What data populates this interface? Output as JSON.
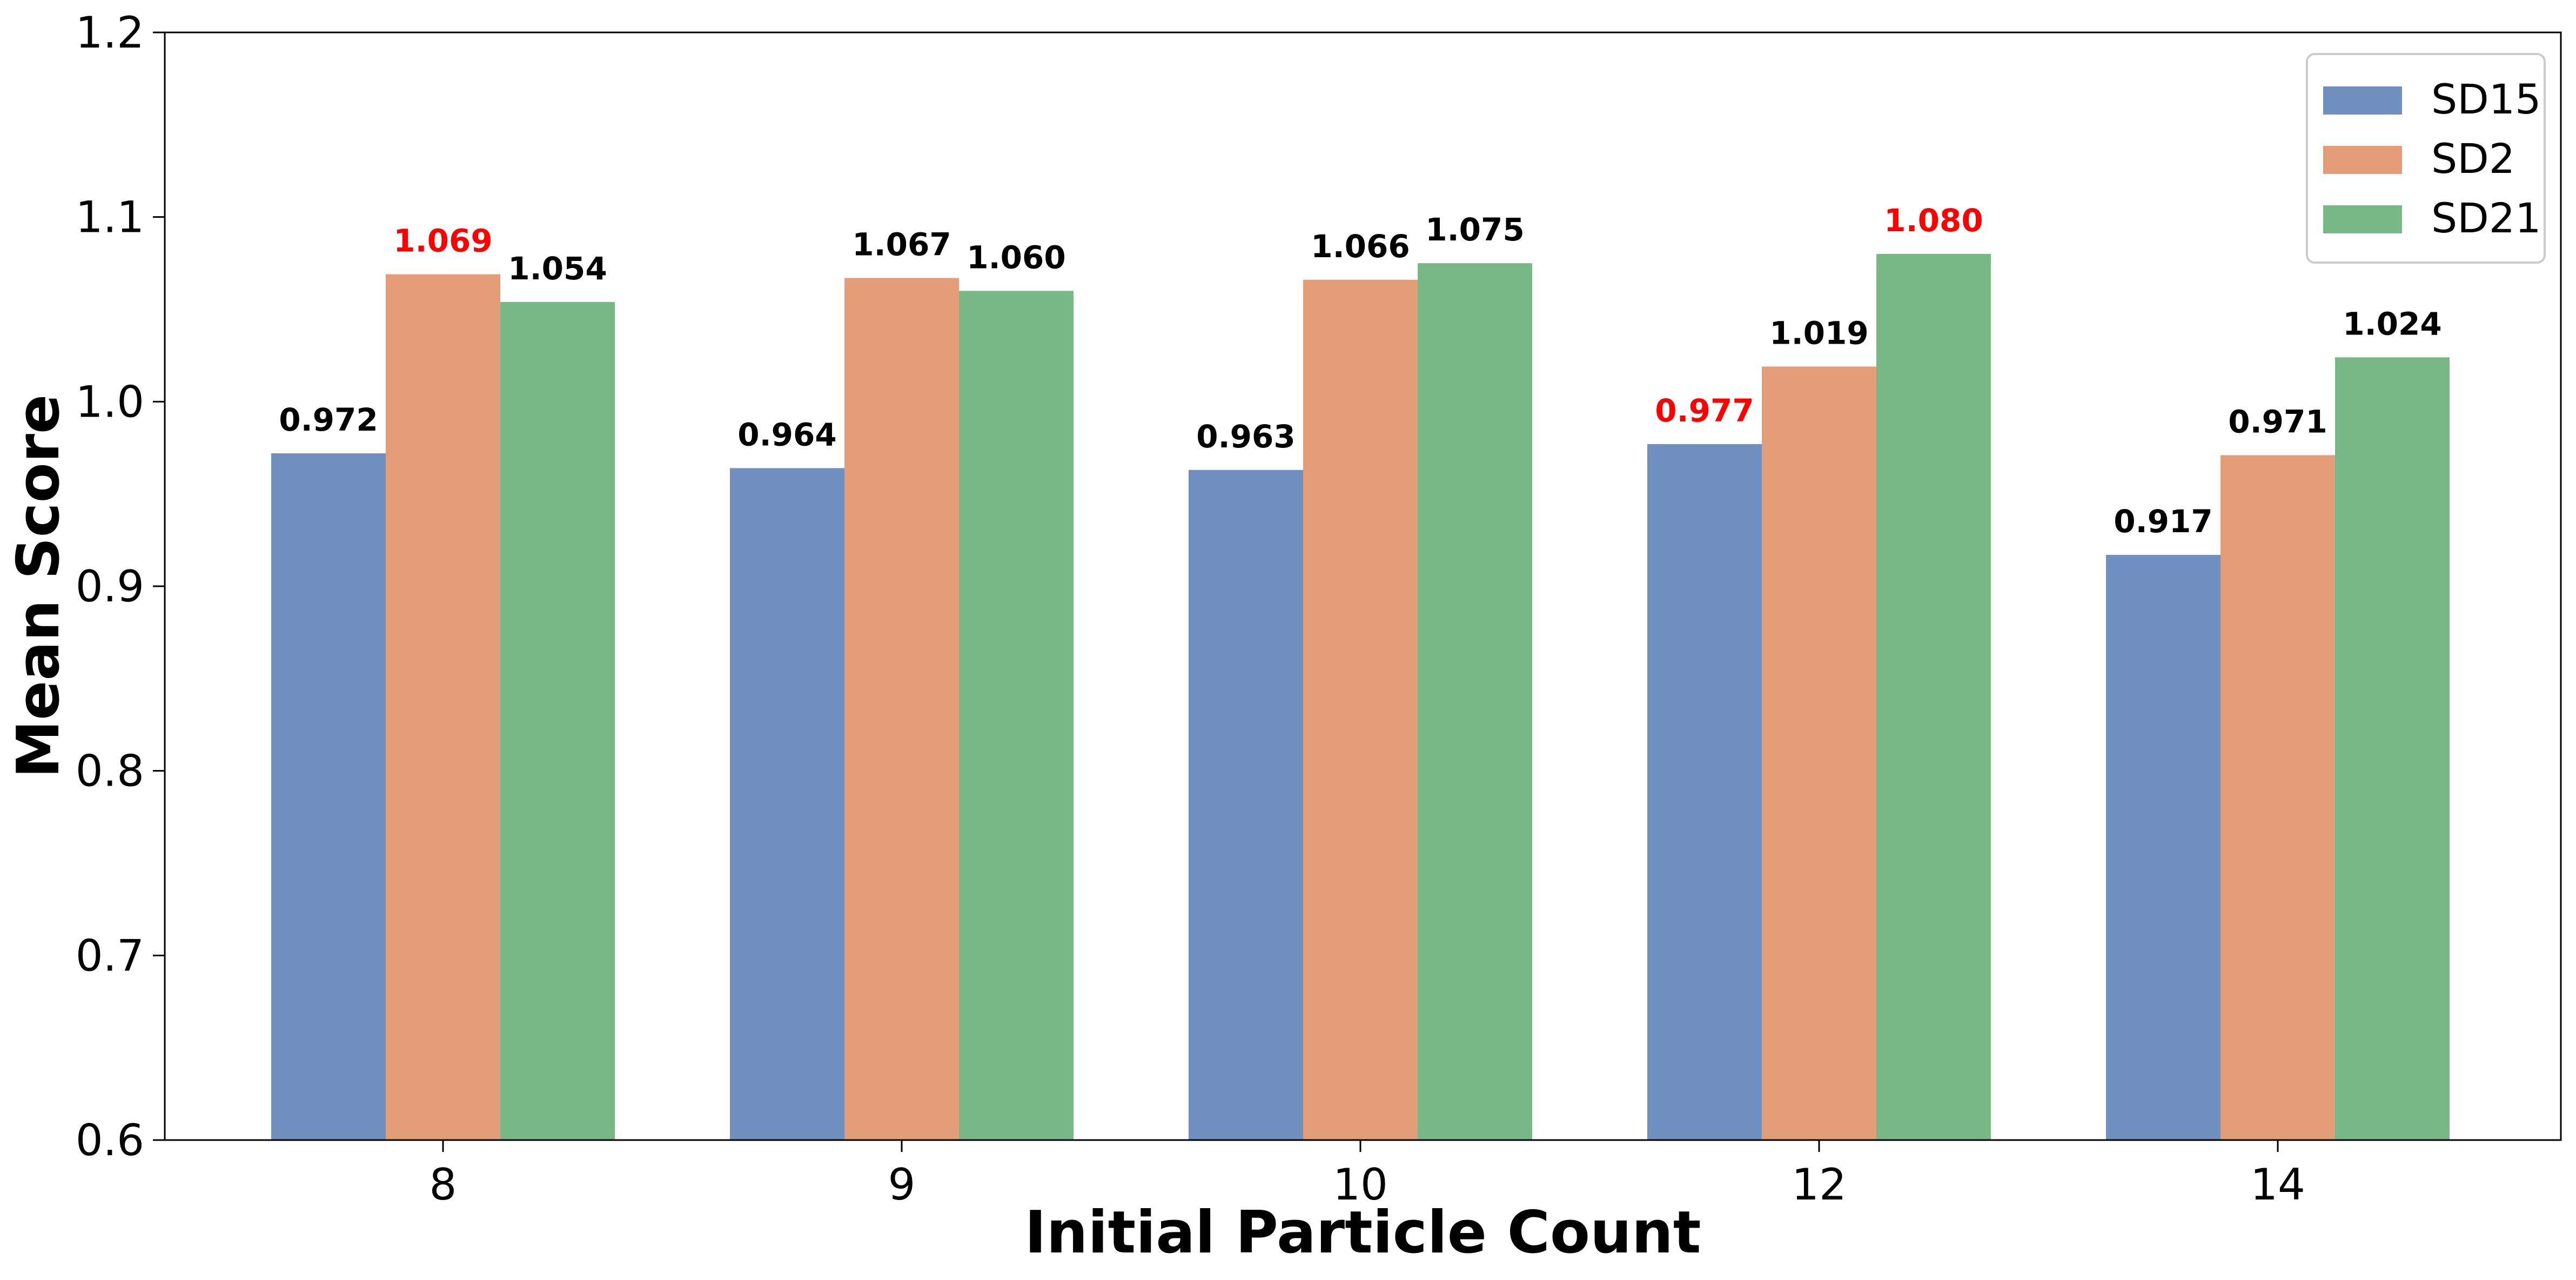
{
  "chart_data": {
    "type": "bar",
    "title": "",
    "xlabel": "Initial Particle Count",
    "ylabel": "Mean Score",
    "categories": [
      "8",
      "9",
      "10",
      "12",
      "14"
    ],
    "ylim": [
      0.6,
      1.2
    ],
    "yticks": [
      "0.6",
      "0.7",
      "0.8",
      "0.9",
      "1.0",
      "1.1",
      "1.2"
    ],
    "grid": false,
    "legend_position": "top-right",
    "highlight_color": "#ff0000",
    "series": [
      {
        "name": "SD15",
        "color": "#7090c0",
        "values": [
          0.972,
          0.964,
          0.963,
          0.977,
          0.917
        ],
        "labels": [
          "0.972",
          "0.964",
          "0.963",
          "0.977",
          "0.917"
        ],
        "highlight": [
          false,
          false,
          false,
          true,
          false
        ]
      },
      {
        "name": "SD2",
        "color": "#e39d78",
        "values": [
          1.069,
          1.067,
          1.066,
          1.019,
          0.971
        ],
        "labels": [
          "1.069",
          "1.067",
          "1.066",
          "1.019",
          "0.971"
        ],
        "highlight": [
          true,
          false,
          false,
          false,
          false
        ]
      },
      {
        "name": "SD21",
        "color": "#78b887",
        "values": [
          1.054,
          1.06,
          1.075,
          1.08,
          1.024
        ],
        "labels": [
          "1.054",
          "1.060",
          "1.075",
          "1.080",
          "1.024"
        ],
        "highlight": [
          false,
          false,
          false,
          true,
          false
        ]
      }
    ]
  }
}
